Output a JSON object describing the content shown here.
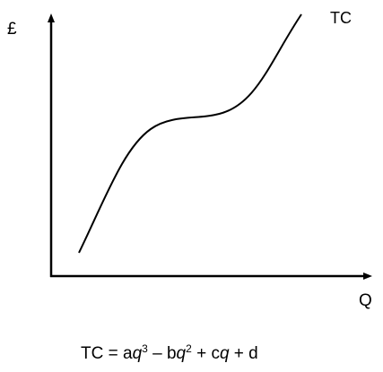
{
  "diagram": {
    "y_axis_label": "£",
    "x_axis_label": "Q",
    "curve_label": "TC",
    "colors": {
      "line": "#000000",
      "background": "#ffffff"
    }
  },
  "equation": {
    "lhs": "TC = a",
    "term1_var": "q",
    "term1_exp": "3",
    "op1": " – b",
    "term2_var": "q",
    "term2_exp": "2",
    "op2": " + c",
    "term3_var": "q",
    "tail": " + d"
  }
}
